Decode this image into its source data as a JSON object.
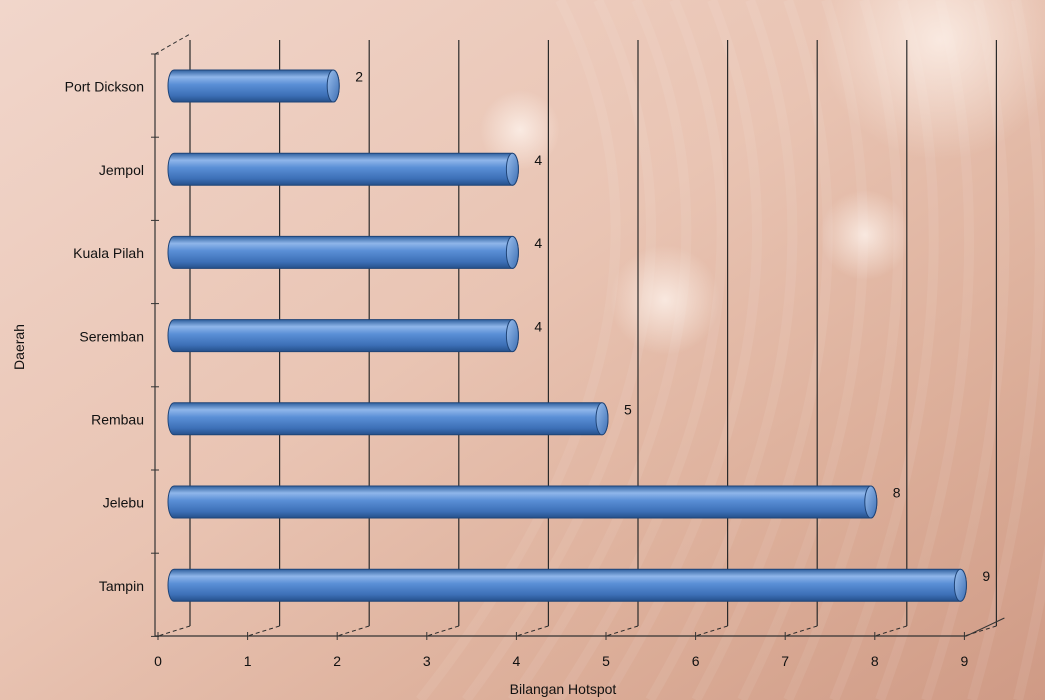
{
  "chart_data": {
    "type": "bar",
    "orientation": "horizontal",
    "categories": [
      "Port Dickson",
      "Jempol",
      "Kuala Pilah",
      "Seremban",
      "Rembau",
      "Jelebu",
      "Tampin"
    ],
    "values": [
      2,
      4,
      4,
      4,
      5,
      8,
      9
    ],
    "data_labels": [
      "2",
      "4",
      "4",
      "4",
      "5",
      "8",
      "9"
    ],
    "xlabel": "Bilangan Hotspot",
    "ylabel": "Daerah",
    "xlim": [
      0,
      9
    ],
    "x_ticks": [
      "0",
      "1",
      "2",
      "3",
      "4",
      "5",
      "6",
      "7",
      "8",
      "9"
    ],
    "grid": "vertical gridlines at every integer",
    "legend": "none",
    "style": "3D cylinder bars",
    "bar_color": "#4a7fc8"
  }
}
